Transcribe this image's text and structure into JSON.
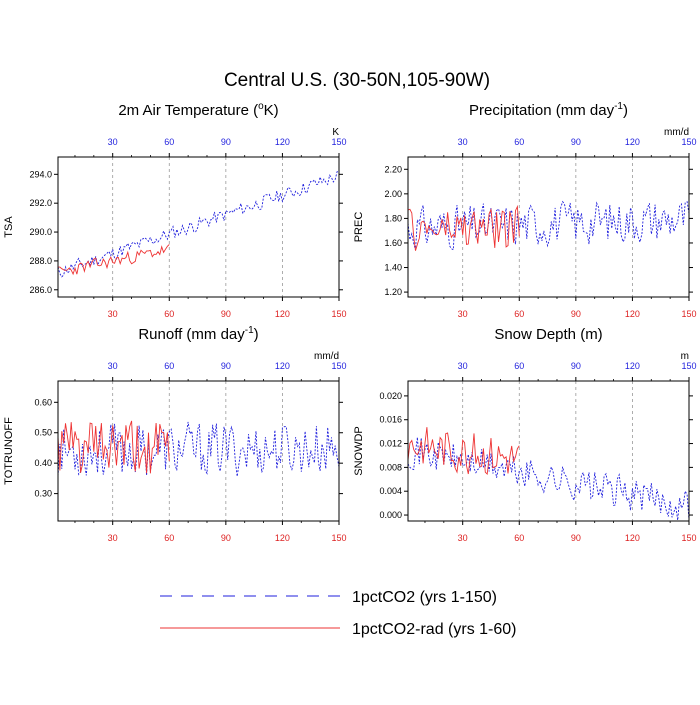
{
  "figure": {
    "title": "Central U.S. (30-50N,105-90W)",
    "legend": [
      {
        "label": "1pctCO2 (yrs 1-150)",
        "color": "#1f1fdd",
        "style": "dashed"
      },
      {
        "label": "1pctCO2-rad (yrs 1-60)",
        "color": "#ee3333",
        "style": "solid"
      }
    ]
  },
  "colors": {
    "series_blue": "#1f1fdd",
    "series_red": "#ee3333",
    "tick_blue": "#1f1fdd",
    "tick_red": "#dd2222"
  },
  "chart_data": [
    {
      "type": "line",
      "title": "2m Air Temperature (",
      "title_sup": "o",
      "title_tail": "K)",
      "ylabel": "TSA",
      "unit": "K",
      "xlim": [
        1,
        150
      ],
      "ylim": [
        285.5,
        295.2
      ],
      "yticks": [
        286.0,
        288.0,
        290.0,
        292.0,
        294.0
      ],
      "ytick_labels": [
        "286.0",
        "288.0",
        "290.0",
        "292.0",
        "294.0"
      ],
      "xticks": [
        30,
        60,
        90,
        120,
        150
      ],
      "xtick_labels_top": [
        "30",
        "60",
        "90",
        "120",
        "150"
      ],
      "xtick_labels_bottom": [
        "30",
        "60",
        "90",
        "120",
        "150"
      ],
      "series": [
        {
          "name": "1pctCO2 (yrs 1-150)",
          "trend": [
            287.2,
            293.9
          ],
          "noise": 0.55,
          "seed": 11
        },
        {
          "name": "1pctCO2-rad (yrs 1-60)",
          "trend": [
            287.2,
            288.8
          ],
          "noise": 0.5,
          "seed": 23
        }
      ]
    },
    {
      "type": "line",
      "title": "Precipitation (mm day",
      "title_sup": "-1",
      "title_tail": ")",
      "ylabel": "PREC",
      "unit": "mm/d",
      "xlim": [
        1,
        150
      ],
      "ylim": [
        1.16,
        2.3
      ],
      "yticks": [
        1.2,
        1.4,
        1.6,
        1.8,
        2.0,
        2.2
      ],
      "ytick_labels": [
        "1.20",
        "1.40",
        "1.60",
        "1.80",
        "2.00",
        "2.20"
      ],
      "xticks": [
        30,
        60,
        90,
        120,
        150
      ],
      "xtick_labels_top": [
        "30",
        "60",
        "90",
        "120",
        "150"
      ],
      "xtick_labels_bottom": [
        "30",
        "60",
        "90",
        "120",
        "150"
      ],
      "series": [
        {
          "name": "1pctCO2 (yrs 1-150)",
          "trend": [
            1.72,
            1.8
          ],
          "noise": 0.2,
          "seed": 31
        },
        {
          "name": "1pctCO2-rad (yrs 1-60)",
          "trend": [
            1.7,
            1.72
          ],
          "noise": 0.2,
          "seed": 47
        }
      ]
    },
    {
      "type": "line",
      "title": "Runoff (mm day",
      "title_sup": "-1",
      "title_tail": ")",
      "ylabel": "TOTRUNOFF",
      "unit": "mm/d",
      "xlim": [
        1,
        150
      ],
      "ylim": [
        0.21,
        0.67
      ],
      "yticks": [
        0.3,
        0.4,
        0.5,
        0.6
      ],
      "ytick_labels": [
        "0.30",
        "0.40",
        "0.50",
        "0.60"
      ],
      "xticks": [
        30,
        60,
        90,
        120,
        150
      ],
      "xtick_labels_top": [
        "30",
        "60",
        "90",
        "120",
        "150"
      ],
      "xtick_labels_bottom": [
        "30",
        "60",
        "90",
        "120",
        "150"
      ],
      "series": [
        {
          "name": "1pctCO2 (yrs 1-150)",
          "trend": [
            0.44,
            0.45
          ],
          "noise": 0.1,
          "seed": 53
        },
        {
          "name": "1pctCO2-rad (yrs 1-60)",
          "trend": [
            0.45,
            0.44
          ],
          "noise": 0.11,
          "seed": 61
        }
      ]
    },
    {
      "type": "line",
      "title": "Snow Depth (m)",
      "title_sup": "",
      "title_tail": "",
      "ylabel": "SNOWDP",
      "unit": "m",
      "xlim": [
        1,
        150
      ],
      "ylim": [
        -0.001,
        0.0225
      ],
      "yticks": [
        0.0,
        0.004,
        0.008,
        0.012,
        0.016,
        0.02
      ],
      "ytick_labels": [
        "0.000",
        "0.004",
        "0.008",
        "0.012",
        "0.016",
        "0.020"
      ],
      "xticks": [
        30,
        60,
        90,
        120,
        150
      ],
      "xtick_labels_top": [
        "30",
        "60",
        "90",
        "120",
        "150"
      ],
      "xtick_labels_bottom": [
        "30",
        "60",
        "90",
        "120",
        "150"
      ],
      "series": [
        {
          "name": "1pctCO2 (yrs 1-150)",
          "trend": [
            0.011,
            0.0015
          ],
          "noise": 0.0032,
          "seed": 71
        },
        {
          "name": "1pctCO2-rad (yrs 1-60)",
          "trend": [
            0.012,
            0.0095
          ],
          "noise": 0.004,
          "seed": 83
        }
      ]
    }
  ]
}
